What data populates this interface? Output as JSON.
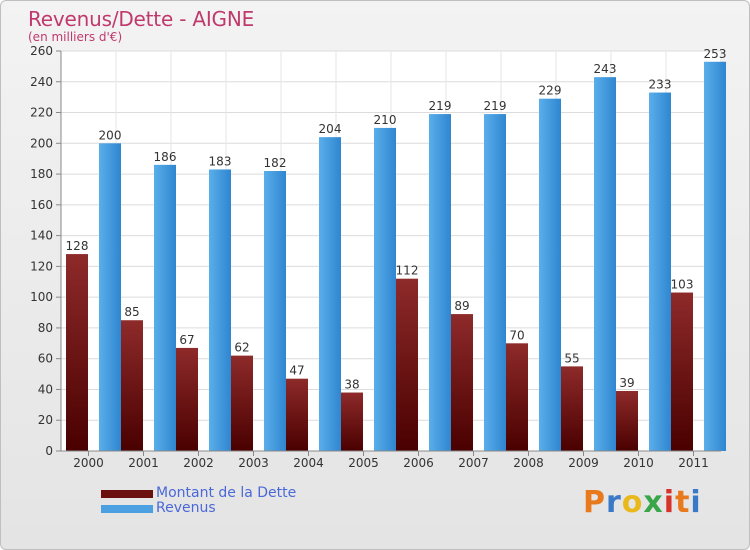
{
  "title": "Revenus/Dette - AIGNE",
  "subtitle": "(en milliers d'€)",
  "chart_data": {
    "type": "bar",
    "categories": [
      "2000",
      "2001",
      "2002",
      "2003",
      "2004",
      "2005",
      "2006",
      "2007",
      "2008",
      "2009",
      "2010",
      "2011"
    ],
    "series": [
      {
        "name": "Montant de la Dette",
        "values": [
          128,
          85,
          67,
          62,
          47,
          38,
          112,
          89,
          70,
          55,
          39,
          103
        ],
        "color": "#7a1f1f"
      },
      {
        "name": "Revenus",
        "values": [
          200,
          186,
          183,
          182,
          204,
          210,
          219,
          219,
          229,
          243,
          233,
          253
        ],
        "color": "#4aa0e0"
      }
    ],
    "ylim": [
      0,
      260
    ],
    "yticks": [
      0,
      20,
      40,
      60,
      80,
      100,
      120,
      140,
      160,
      180,
      200,
      220,
      240,
      260
    ],
    "grid": true,
    "legend_position": "bottom-left"
  },
  "legend": {
    "dette_label": "Montant de la Dette",
    "revenus_label": "Revenus",
    "dette_color": "#6b0f0f",
    "revenus_color": "#4aa0e0"
  },
  "logo": {
    "letters": [
      "P",
      "r",
      "o",
      "x",
      "i",
      "t",
      "i"
    ],
    "colors": [
      "#e87a1d",
      "#3a78c8",
      "#e8b81d",
      "#3aa64a",
      "#d8332a",
      "#e87a1d",
      "#3a78c8"
    ]
  }
}
